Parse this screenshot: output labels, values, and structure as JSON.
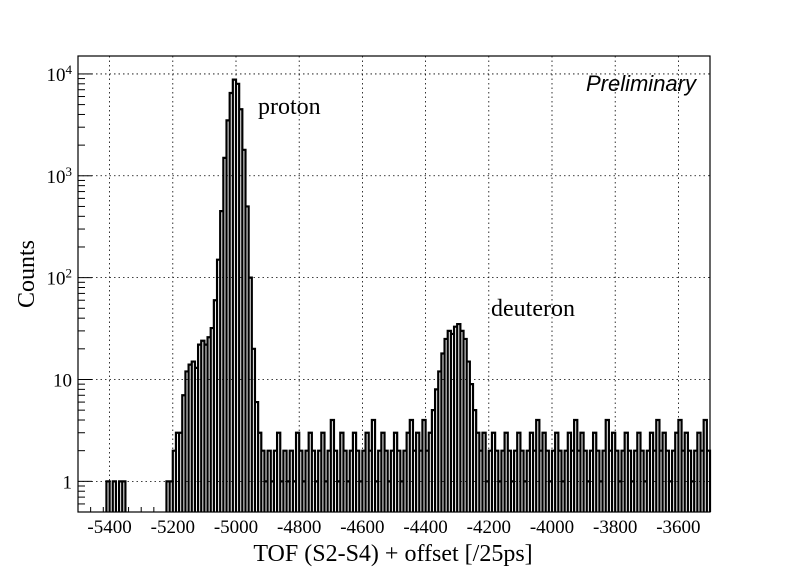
{
  "chart_data": {
    "type": "histogram",
    "xlabel": "TOF (S2-S4) + offset [/25ps]",
    "ylabel": "Counts",
    "annotations": {
      "preliminary": "Preliminary",
      "proton": "proton",
      "deuteron": "deuteron"
    },
    "xlim": [
      -5500,
      -3500
    ],
    "ylim": [
      0.5,
      15000
    ],
    "yscale": "log",
    "grid": true,
    "legend": "none",
    "x_ticks": [
      {
        "value": -5400,
        "label": "-5400"
      },
      {
        "value": -5200,
        "label": "-5200"
      },
      {
        "value": -5000,
        "label": "-5000"
      },
      {
        "value": -4800,
        "label": "-4800"
      },
      {
        "value": -4600,
        "label": "-4600"
      },
      {
        "value": -4400,
        "label": "-4400"
      },
      {
        "value": -4200,
        "label": "-4200"
      },
      {
        "value": -4000,
        "label": "-4000"
      },
      {
        "value": -3800,
        "label": "-3800"
      },
      {
        "value": -3600,
        "label": "-3600"
      }
    ],
    "y_ticks": [
      {
        "value": 1,
        "base": "1",
        "exp": ""
      },
      {
        "value": 10,
        "base": "10",
        "exp": ""
      },
      {
        "value": 100,
        "base": "10",
        "exp": "2"
      },
      {
        "value": 1000,
        "base": "10",
        "exp": "3"
      },
      {
        "value": 10000,
        "base": "10",
        "exp": "4"
      }
    ],
    "line_color": "#000000",
    "bin_width": 10,
    "bins": [
      [
        -5410,
        1
      ],
      [
        -5390,
        1
      ],
      [
        -5370,
        1
      ],
      [
        -5360,
        1
      ],
      [
        -5220,
        1
      ],
      [
        -5210,
        1
      ],
      [
        -5200,
        2
      ],
      [
        -5190,
        3
      ],
      [
        -5180,
        3
      ],
      [
        -5170,
        7
      ],
      [
        -5160,
        12
      ],
      [
        -5150,
        14
      ],
      [
        -5140,
        15
      ],
      [
        -5130,
        13
      ],
      [
        -5120,
        22
      ],
      [
        -5110,
        24
      ],
      [
        -5100,
        22
      ],
      [
        -5090,
        26
      ],
      [
        -5080,
        32
      ],
      [
        -5070,
        60
      ],
      [
        -5060,
        150
      ],
      [
        -5050,
        450
      ],
      [
        -5040,
        1500
      ],
      [
        -5030,
        3500
      ],
      [
        -5020,
        6500
      ],
      [
        -5010,
        8800
      ],
      [
        -5000,
        8000
      ],
      [
        -4990,
        4500
      ],
      [
        -4980,
        1800
      ],
      [
        -4970,
        500
      ],
      [
        -4960,
        100
      ],
      [
        -4950,
        20
      ],
      [
        -4940,
        6
      ],
      [
        -4930,
        3
      ],
      [
        -4920,
        2
      ],
      [
        -4910,
        1
      ],
      [
        -4900,
        2
      ],
      [
        -4890,
        1
      ],
      [
        -4880,
        2
      ],
      [
        -4870,
        3
      ],
      [
        -4860,
        1
      ],
      [
        -4850,
        2
      ],
      [
        -4840,
        1
      ],
      [
        -4830,
        2
      ],
      [
        -4820,
        1
      ],
      [
        -4810,
        3
      ],
      [
        -4800,
        2
      ],
      [
        -4790,
        1
      ],
      [
        -4780,
        2
      ],
      [
        -4770,
        3
      ],
      [
        -4760,
        2
      ],
      [
        -4750,
        1
      ],
      [
        -4740,
        2
      ],
      [
        -4730,
        3
      ],
      [
        -4720,
        1
      ],
      [
        -4710,
        2
      ],
      [
        -4700,
        4
      ],
      [
        -4690,
        2
      ],
      [
        -4680,
        1
      ],
      [
        -4670,
        3
      ],
      [
        -4660,
        2
      ],
      [
        -4650,
        1
      ],
      [
        -4640,
        2
      ],
      [
        -4630,
        3
      ],
      [
        -4620,
        2
      ],
      [
        -4610,
        1
      ],
      [
        -4600,
        2
      ],
      [
        -4590,
        3
      ],
      [
        -4580,
        2
      ],
      [
        -4570,
        4
      ],
      [
        -4560,
        1
      ],
      [
        -4550,
        2
      ],
      [
        -4540,
        3
      ],
      [
        -4530,
        2
      ],
      [
        -4520,
        1
      ],
      [
        -4510,
        2
      ],
      [
        -4500,
        3
      ],
      [
        -4490,
        2
      ],
      [
        -4480,
        1
      ],
      [
        -4470,
        2
      ],
      [
        -4460,
        3
      ],
      [
        -4450,
        4
      ],
      [
        -4440,
        2
      ],
      [
        -4430,
        3
      ],
      [
        -4420,
        2
      ],
      [
        -4410,
        4
      ],
      [
        -4400,
        2
      ],
      [
        -4390,
        3
      ],
      [
        -4380,
        5
      ],
      [
        -4370,
        8
      ],
      [
        -4360,
        12
      ],
      [
        -4350,
        18
      ],
      [
        -4340,
        25
      ],
      [
        -4330,
        30
      ],
      [
        -4320,
        28
      ],
      [
        -4310,
        33
      ],
      [
        -4300,
        35
      ],
      [
        -4290,
        30
      ],
      [
        -4280,
        25
      ],
      [
        -4270,
        15
      ],
      [
        -4260,
        9
      ],
      [
        -4250,
        5
      ],
      [
        -4240,
        3
      ],
      [
        -4230,
        2
      ],
      [
        -4220,
        3
      ],
      [
        -4210,
        1
      ],
      [
        -4200,
        2
      ],
      [
        -4190,
        3
      ],
      [
        -4180,
        2
      ],
      [
        -4170,
        1
      ],
      [
        -4160,
        2
      ],
      [
        -4150,
        3
      ],
      [
        -4140,
        2
      ],
      [
        -4130,
        1
      ],
      [
        -4120,
        2
      ],
      [
        -4110,
        3
      ],
      [
        -4100,
        2
      ],
      [
        -4090,
        1
      ],
      [
        -4080,
        2
      ],
      [
        -4070,
        3
      ],
      [
        -4060,
        2
      ],
      [
        -4050,
        4
      ],
      [
        -4040,
        2
      ],
      [
        -4030,
        3
      ],
      [
        -4020,
        2
      ],
      [
        -4010,
        1
      ],
      [
        -4000,
        2
      ],
      [
        -3990,
        3
      ],
      [
        -3980,
        2
      ],
      [
        -3970,
        1
      ],
      [
        -3960,
        2
      ],
      [
        -3950,
        3
      ],
      [
        -3940,
        2
      ],
      [
        -3930,
        4
      ],
      [
        -3920,
        2
      ],
      [
        -3910,
        3
      ],
      [
        -3900,
        2
      ],
      [
        -3890,
        1
      ],
      [
        -3880,
        2
      ],
      [
        -3870,
        3
      ],
      [
        -3860,
        2
      ],
      [
        -3850,
        1
      ],
      [
        -3840,
        2
      ],
      [
        -3830,
        4
      ],
      [
        -3820,
        2
      ],
      [
        -3810,
        3
      ],
      [
        -3800,
        2
      ],
      [
        -3790,
        1
      ],
      [
        -3780,
        2
      ],
      [
        -3770,
        3
      ],
      [
        -3760,
        2
      ],
      [
        -3750,
        1
      ],
      [
        -3740,
        2
      ],
      [
        -3730,
        3
      ],
      [
        -3720,
        2
      ],
      [
        -3710,
        1
      ],
      [
        -3700,
        2
      ],
      [
        -3690,
        3
      ],
      [
        -3680,
        2
      ],
      [
        -3670,
        4
      ],
      [
        -3660,
        2
      ],
      [
        -3650,
        3
      ],
      [
        -3640,
        2
      ],
      [
        -3630,
        1
      ],
      [
        -3620,
        2
      ],
      [
        -3610,
        3
      ],
      [
        -3600,
        4
      ],
      [
        -3590,
        2
      ],
      [
        -3580,
        3
      ],
      [
        -3570,
        2
      ],
      [
        -3560,
        1
      ],
      [
        -3550,
        2
      ],
      [
        -3540,
        3
      ],
      [
        -3530,
        2
      ],
      [
        -3520,
        4
      ],
      [
        -3510,
        2
      ]
    ]
  }
}
